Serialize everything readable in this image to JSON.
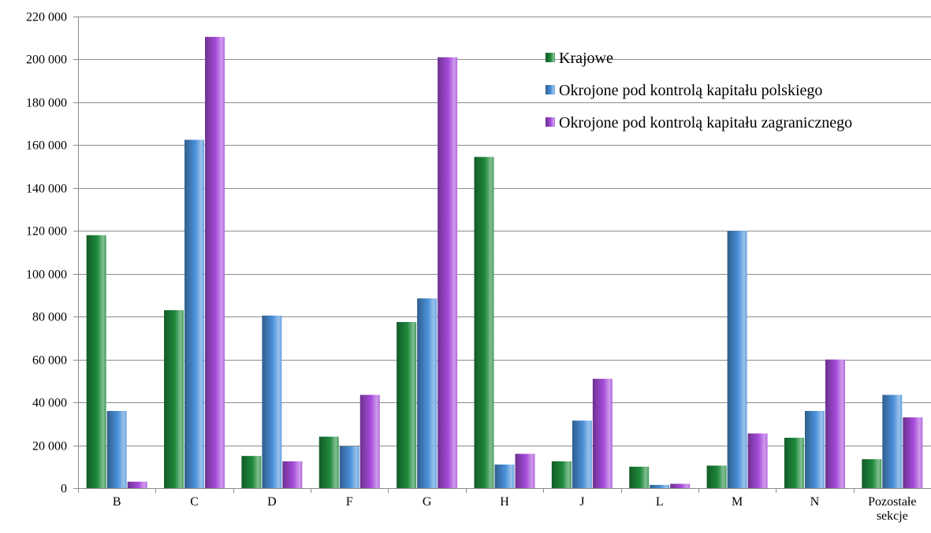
{
  "chart_data": {
    "type": "bar",
    "title": "",
    "xlabel": "",
    "ylabel": "",
    "ylim": [
      0,
      220000
    ],
    "ytick_step": 20000,
    "y_tick_labels": [
      "0",
      "20 000",
      "40 000",
      "60 000",
      "80 000",
      "100 000",
      "120 000",
      "140 000",
      "160 000",
      "180 000",
      "200 000",
      "220 000"
    ],
    "grid": true,
    "legend_position": "top-right",
    "categories": [
      {
        "lines": [
          "B"
        ]
      },
      {
        "lines": [
          "C"
        ]
      },
      {
        "lines": [
          "D"
        ]
      },
      {
        "lines": [
          "F"
        ]
      },
      {
        "lines": [
          "G"
        ]
      },
      {
        "lines": [
          "H"
        ]
      },
      {
        "lines": [
          "J"
        ]
      },
      {
        "lines": [
          "L"
        ]
      },
      {
        "lines": [
          "M"
        ]
      },
      {
        "lines": [
          "N"
        ]
      },
      {
        "lines": [
          "Pozostałe",
          "sekcje"
        ]
      }
    ],
    "series": [
      {
        "name": "Krajowe",
        "color": "#1E8A3C",
        "values": [
          118000,
          83000,
          15000,
          24000,
          77500,
          154500,
          12500,
          10000,
          10500,
          23500,
          13500
        ]
      },
      {
        "name": "Okrojone pod kontrolą kapitału polskiego",
        "color": "#4A90D9",
        "values": [
          36000,
          162500,
          80500,
          19500,
          88500,
          11000,
          31500,
          1500,
          120000,
          36000,
          43500
        ]
      },
      {
        "name": "Okrojone pod kontrolą kapitału zagranicznego",
        "color": "#A64BDB",
        "values": [
          3000,
          210500,
          12500,
          43500,
          201000,
          16000,
          51000,
          2000,
          25500,
          60000,
          33000
        ]
      }
    ]
  }
}
